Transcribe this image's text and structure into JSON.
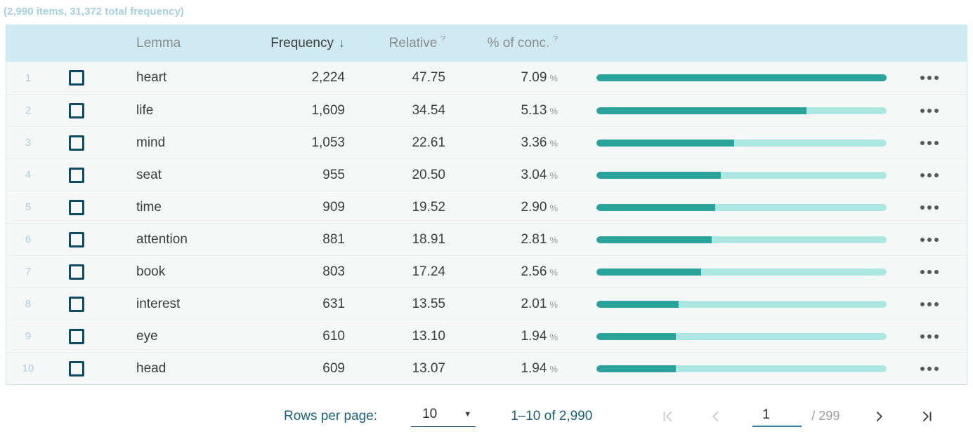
{
  "status_line": "(2,990 items, 31,372 total frequency)",
  "table": {
    "columns": {
      "lemma": "Lemma",
      "frequency": "Frequency",
      "relative": "Relative",
      "conc": "% of conc."
    },
    "sort_icon": "↓",
    "help_icon": "?",
    "percent_suffix": "%",
    "rows": [
      {
        "index": "1",
        "lemma": "heart",
        "frequency": "2,224",
        "relative": "47.75",
        "conc": "7.09"
      },
      {
        "index": "2",
        "lemma": "life",
        "frequency": "1,609",
        "relative": "34.54",
        "conc": "5.13"
      },
      {
        "index": "3",
        "lemma": "mind",
        "frequency": "1,053",
        "relative": "22.61",
        "conc": "3.36"
      },
      {
        "index": "4",
        "lemma": "seat",
        "frequency": "955",
        "relative": "20.50",
        "conc": "3.04"
      },
      {
        "index": "5",
        "lemma": "time",
        "frequency": "909",
        "relative": "19.52",
        "conc": "2.90"
      },
      {
        "index": "6",
        "lemma": "attention",
        "frequency": "881",
        "relative": "18.91",
        "conc": "2.81"
      },
      {
        "index": "7",
        "lemma": "book",
        "frequency": "803",
        "relative": "17.24",
        "conc": "2.56"
      },
      {
        "index": "8",
        "lemma": "interest",
        "frequency": "631",
        "relative": "13.55",
        "conc": "2.01"
      },
      {
        "index": "9",
        "lemma": "eye",
        "frequency": "610",
        "relative": "13.10",
        "conc": "1.94"
      },
      {
        "index": "10",
        "lemma": "head",
        "frequency": "609",
        "relative": "13.07",
        "conc": "1.94"
      }
    ]
  },
  "chart_data": {
    "type": "bar",
    "categories": [
      "heart",
      "life",
      "mind",
      "seat",
      "time",
      "attention",
      "book",
      "interest",
      "eye",
      "head"
    ],
    "values": [
      2224,
      1609,
      1053,
      955,
      909,
      881,
      803,
      631,
      610,
      609
    ],
    "title": "Lemma frequency bars",
    "xlabel": "Frequency",
    "ylabel": "Lemma",
    "xlim": [
      0,
      2224
    ]
  },
  "footer": {
    "rows_per_page_label": "Rows per page:",
    "rows_per_page_value": "10",
    "range_label": "1–10 of 2,990",
    "page_value": "1",
    "page_total": "/ 299"
  },
  "colors": {
    "header_bg": "#cfeaf2",
    "row_bg": "#f6f7f7",
    "table_border": "#c9e6f0",
    "bar_fill": "#2aa49a",
    "bar_track": "#ace8e1",
    "checkbox_border": "#0d4a63",
    "row_number_text": "#a6cfe0",
    "status_text": "#a6d0e1",
    "header_text": "#8c8c8c",
    "body_text": "#3c3c3c",
    "footer_accent": "#1a607f",
    "muted_text": "#9e9e9e",
    "disabled_icon": "#c9c9c9"
  }
}
